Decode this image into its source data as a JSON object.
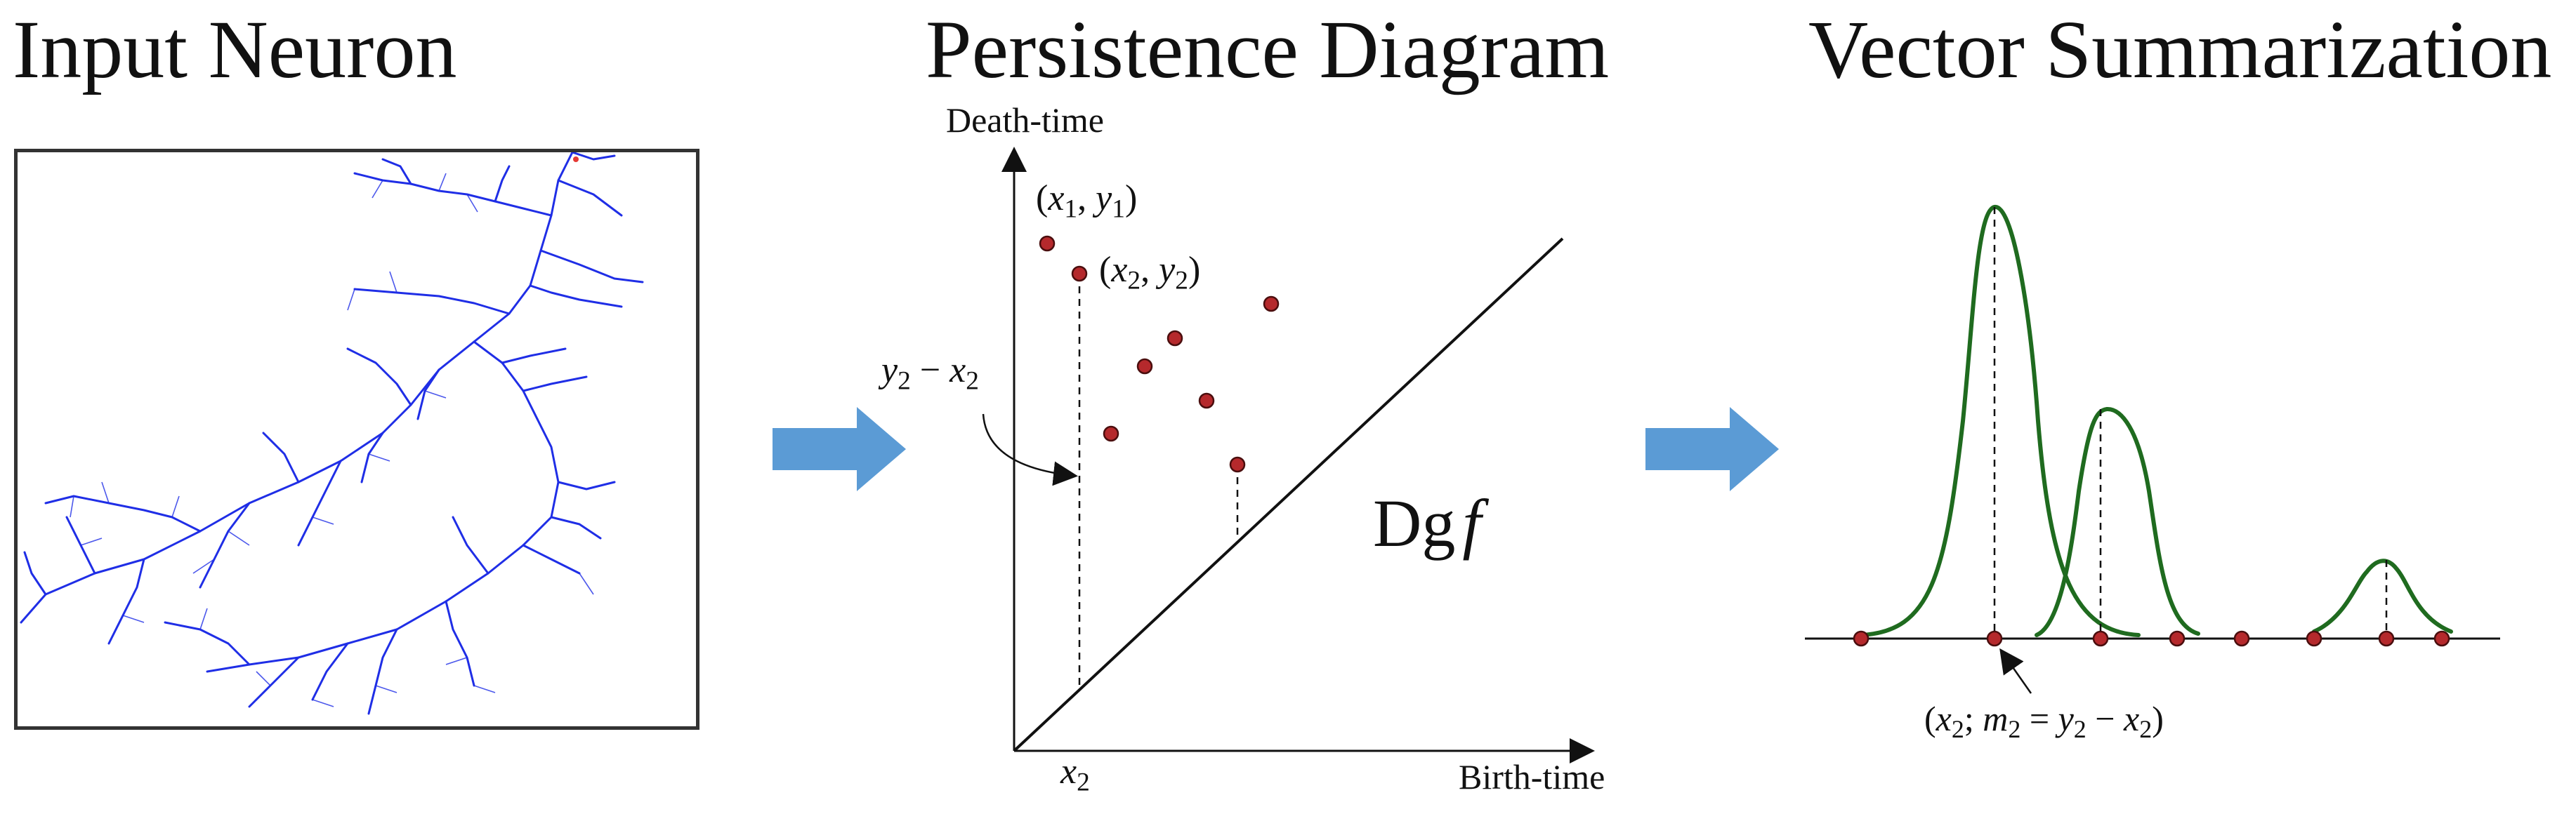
{
  "panels": {
    "input": {
      "title": "Input Neuron"
    },
    "persistence": {
      "title": "Persistence Diagram",
      "y_axis_label": "Death-time",
      "x_axis_label": "Birth-time",
      "point1_label": {
        "x": "x",
        "i": "1",
        "y": "y"
      },
      "point2_label": {
        "x": "x",
        "i": "2",
        "y": "y"
      },
      "gap_label": {
        "y": "y",
        "x": "x",
        "i": "2",
        "op": "−"
      },
      "x2_tick": {
        "x": "x",
        "i": "2"
      },
      "diagram_label": {
        "dg": "Dg",
        "f": "f"
      }
    },
    "vector": {
      "title": "Vector Summarization",
      "annotation": {
        "x": "x",
        "m": "m",
        "y": "y",
        "i": "2",
        "eq": "=",
        "op": "−",
        "sep": ";"
      }
    }
  },
  "colors": {
    "point_fill": "#b5292c",
    "point_stroke": "#4a0e0e",
    "curve": "#1f6b1f",
    "neuron": "#1f2ee6",
    "arrow": "#5b9bd5",
    "axis": "#111111"
  },
  "icons": {
    "flow_arrow": "right-arrow-icon"
  }
}
